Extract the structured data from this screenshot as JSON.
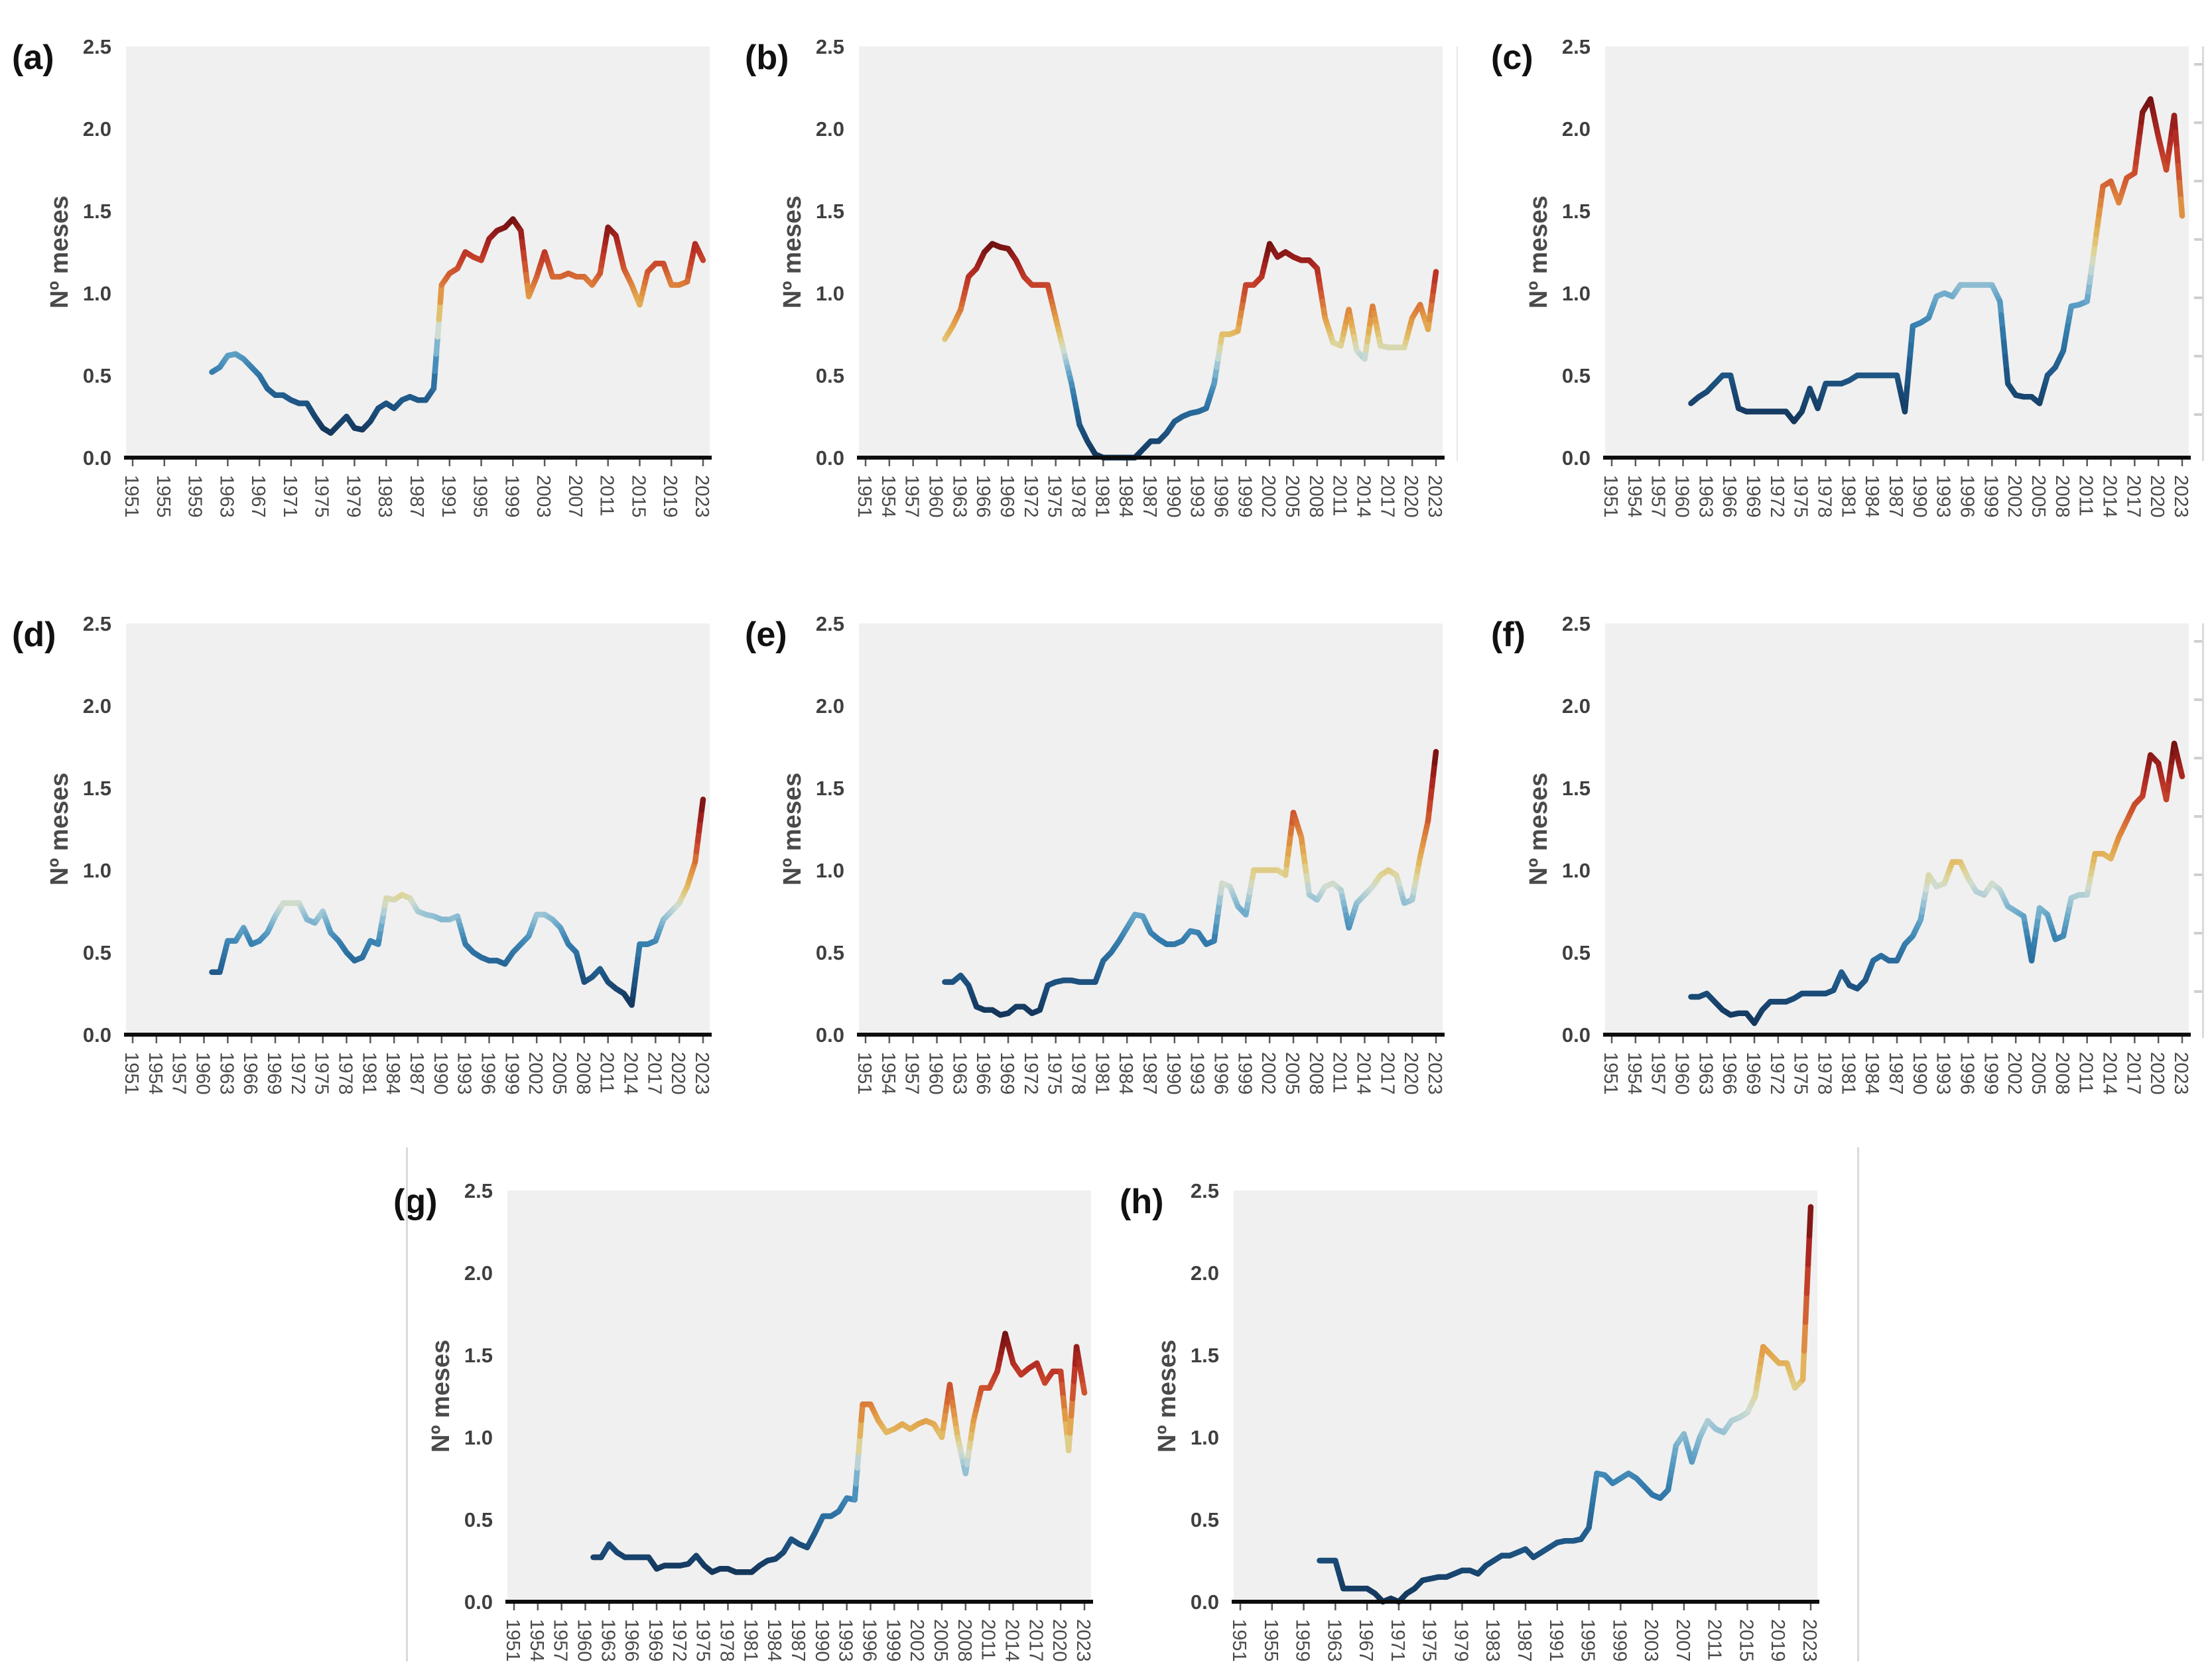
{
  "figure": {
    "ylabel": "Nº meses",
    "ylim": [
      0,
      2.5
    ],
    "y_ticks": [
      "0.0",
      "0.5",
      "1.0",
      "1.5",
      "2.0",
      "2.5"
    ],
    "x_range": [
      1951,
      2023
    ],
    "x_ticks_step3": [
      "1951",
      "1954",
      "1957",
      "1960",
      "1963",
      "1966",
      "1969",
      "1972",
      "1975",
      "1978",
      "1981",
      "1984",
      "1987",
      "1990",
      "1993",
      "1996",
      "1999",
      "2002",
      "2005",
      "2008",
      "2011",
      "2014",
      "2017",
      "2020",
      "2023"
    ],
    "x_ticks_step4": [
      "1951",
      "1955",
      "1959",
      "1963",
      "1967",
      "1971",
      "1975",
      "1979",
      "1983",
      "1987",
      "1991",
      "1995",
      "1999",
      "2003",
      "2007",
      "2011",
      "2015",
      "2019",
      "2023"
    ]
  },
  "colors": {
    "plot_bg": "#f0f0f0",
    "grid": "#ffffff",
    "axis": "#0d0d0d",
    "tick_mark": "#5a5a5a",
    "separator": "#dadada",
    "colormap": [
      [
        0.0,
        "#14365a"
      ],
      [
        0.1,
        "#1a4b77"
      ],
      [
        0.2,
        "#256495"
      ],
      [
        0.3,
        "#3780b0"
      ],
      [
        0.38,
        "#64a5c8"
      ],
      [
        0.44,
        "#9cc5d5"
      ],
      [
        0.49,
        "#cfdcd3"
      ],
      [
        0.53,
        "#ddd69c"
      ],
      [
        0.58,
        "#e2bc66"
      ],
      [
        0.64,
        "#e29e47"
      ],
      [
        0.7,
        "#db7d3b"
      ],
      [
        0.76,
        "#cf5730"
      ],
      [
        0.83,
        "#c13a28"
      ],
      [
        0.9,
        "#a82420"
      ],
      [
        1.0,
        "#6f1110"
      ]
    ],
    "color_encoding": "line color maps the y-value normalized within each panel: low = dark blue, middle = pale yellow, high = dark red"
  },
  "chart_data": [
    {
      "id": "a",
      "label": "(a)",
      "type": "line",
      "ylabel": "Nº meses",
      "ylim": [
        0,
        2.5
      ],
      "start_year": 1961,
      "x_tick_step": 4,
      "values": [
        0.52,
        0.55,
        0.62,
        0.63,
        0.6,
        0.55,
        0.5,
        0.42,
        0.38,
        0.38,
        0.35,
        0.33,
        0.33,
        0.25,
        0.18,
        0.15,
        0.2,
        0.25,
        0.18,
        0.17,
        0.22,
        0.3,
        0.33,
        0.3,
        0.35,
        0.37,
        0.35,
        0.35,
        0.42,
        1.05,
        1.12,
        1.15,
        1.25,
        1.22,
        1.2,
        1.33,
        1.38,
        1.4,
        1.45,
        1.38,
        0.98,
        1.1,
        1.25,
        1.1,
        1.1,
        1.12,
        1.1,
        1.1,
        1.05,
        1.12,
        1.4,
        1.35,
        1.15,
        1.05,
        0.93,
        1.13,
        1.18,
        1.18,
        1.05,
        1.05,
        1.07,
        1.3,
        1.2
      ]
    },
    {
      "id": "b",
      "label": "(b)",
      "type": "line",
      "ylabel": "Nº meses",
      "ylim": [
        0,
        2.5
      ],
      "start_year": 1961,
      "x_tick_step": 3,
      "values": [
        0.72,
        0.8,
        0.9,
        1.1,
        1.15,
        1.25,
        1.3,
        1.28,
        1.27,
        1.2,
        1.1,
        1.05,
        1.05,
        1.05,
        0.85,
        0.65,
        0.45,
        0.2,
        0.1,
        0.02,
        0.0,
        0.0,
        0.0,
        0.0,
        0.0,
        0.05,
        0.1,
        0.1,
        0.15,
        0.22,
        0.25,
        0.27,
        0.28,
        0.3,
        0.45,
        0.75,
        0.75,
        0.77,
        1.05,
        1.05,
        1.1,
        1.3,
        1.22,
        1.25,
        1.22,
        1.2,
        1.2,
        1.15,
        0.85,
        0.7,
        0.68,
        0.9,
        0.65,
        0.6,
        0.92,
        0.68,
        0.67,
        0.67,
        0.67,
        0.85,
        0.93,
        0.78,
        1.13
      ]
    },
    {
      "id": "c",
      "label": "(c)",
      "type": "line",
      "ylabel": "Nº meses",
      "ylim": [
        0,
        2.5
      ],
      "start_year": 1961,
      "x_tick_step": 3,
      "values": [
        0.33,
        0.37,
        0.4,
        0.45,
        0.5,
        0.5,
        0.3,
        0.28,
        0.28,
        0.28,
        0.28,
        0.28,
        0.28,
        0.22,
        0.28,
        0.42,
        0.3,
        0.45,
        0.45,
        0.45,
        0.47,
        0.5,
        0.5,
        0.5,
        0.5,
        0.5,
        0.5,
        0.28,
        0.8,
        0.82,
        0.85,
        0.98,
        1.0,
        0.98,
        1.05,
        1.05,
        1.05,
        1.05,
        1.05,
        0.95,
        0.45,
        0.38,
        0.37,
        0.37,
        0.33,
        0.5,
        0.55,
        0.65,
        0.92,
        0.93,
        0.95,
        1.3,
        1.65,
        1.68,
        1.55,
        1.7,
        1.73,
        2.1,
        2.18,
        1.95,
        1.75,
        2.08,
        1.47
      ]
    },
    {
      "id": "d",
      "label": "(d)",
      "type": "line",
      "ylabel": "Nº meses",
      "ylim": [
        0,
        2.5
      ],
      "start_year": 1961,
      "x_tick_step": 3,
      "values": [
        0.38,
        0.38,
        0.57,
        0.57,
        0.65,
        0.55,
        0.57,
        0.62,
        0.72,
        0.8,
        0.8,
        0.8,
        0.7,
        0.68,
        0.75,
        0.62,
        0.57,
        0.5,
        0.45,
        0.47,
        0.57,
        0.55,
        0.83,
        0.82,
        0.85,
        0.83,
        0.75,
        0.73,
        0.72,
        0.7,
        0.7,
        0.72,
        0.55,
        0.5,
        0.47,
        0.45,
        0.45,
        0.43,
        0.5,
        0.55,
        0.6,
        0.73,
        0.73,
        0.7,
        0.65,
        0.55,
        0.5,
        0.32,
        0.35,
        0.4,
        0.32,
        0.28,
        0.25,
        0.18,
        0.55,
        0.55,
        0.57,
        0.7,
        0.75,
        0.8,
        0.9,
        1.05,
        1.43
      ]
    },
    {
      "id": "e",
      "label": "(e)",
      "type": "line",
      "ylabel": "Nº meses",
      "ylim": [
        0,
        2.5
      ],
      "start_year": 1961,
      "x_tick_step": 3,
      "values": [
        0.32,
        0.32,
        0.36,
        0.3,
        0.17,
        0.15,
        0.15,
        0.12,
        0.13,
        0.17,
        0.17,
        0.13,
        0.15,
        0.3,
        0.32,
        0.33,
        0.33,
        0.32,
        0.32,
        0.32,
        0.45,
        0.5,
        0.57,
        0.65,
        0.73,
        0.72,
        0.62,
        0.58,
        0.55,
        0.55,
        0.57,
        0.63,
        0.62,
        0.55,
        0.57,
        0.92,
        0.9,
        0.78,
        0.73,
        1.0,
        1.0,
        1.0,
        1.0,
        0.97,
        1.35,
        1.2,
        0.85,
        0.82,
        0.9,
        0.92,
        0.88,
        0.65,
        0.8,
        0.85,
        0.9,
        0.97,
        1.0,
        0.97,
        0.8,
        0.82,
        1.08,
        1.3,
        1.72
      ]
    },
    {
      "id": "f",
      "label": "(f)",
      "type": "line",
      "ylabel": "Nº meses",
      "ylim": [
        0,
        2.5
      ],
      "start_year": 1961,
      "x_tick_step": 3,
      "values": [
        0.23,
        0.23,
        0.25,
        0.2,
        0.15,
        0.12,
        0.13,
        0.13,
        0.07,
        0.15,
        0.2,
        0.2,
        0.2,
        0.22,
        0.25,
        0.25,
        0.25,
        0.25,
        0.27,
        0.38,
        0.3,
        0.28,
        0.33,
        0.45,
        0.48,
        0.45,
        0.45,
        0.55,
        0.6,
        0.7,
        0.97,
        0.9,
        0.92,
        1.05,
        1.05,
        0.95,
        0.87,
        0.85,
        0.92,
        0.88,
        0.78,
        0.75,
        0.72,
        0.45,
        0.77,
        0.73,
        0.58,
        0.6,
        0.83,
        0.85,
        0.85,
        1.1,
        1.1,
        1.07,
        1.2,
        1.3,
        1.4,
        1.45,
        1.7,
        1.65,
        1.43,
        1.77,
        1.57
      ]
    },
    {
      "id": "g",
      "label": "(g)",
      "type": "line",
      "ylabel": "Nº meses",
      "ylim": [
        0,
        2.5
      ],
      "start_year": 1961,
      "x_tick_step": 3,
      "values": [
        0.27,
        0.27,
        0.35,
        0.3,
        0.27,
        0.27,
        0.27,
        0.27,
        0.2,
        0.22,
        0.22,
        0.22,
        0.23,
        0.28,
        0.22,
        0.18,
        0.2,
        0.2,
        0.18,
        0.18,
        0.18,
        0.22,
        0.25,
        0.26,
        0.3,
        0.38,
        0.35,
        0.33,
        0.42,
        0.52,
        0.52,
        0.55,
        0.63,
        0.62,
        1.2,
        1.2,
        1.1,
        1.03,
        1.05,
        1.08,
        1.05,
        1.08,
        1.1,
        1.08,
        1.0,
        1.32,
        1.0,
        0.78,
        1.1,
        1.3,
        1.3,
        1.4,
        1.63,
        1.45,
        1.38,
        1.42,
        1.45,
        1.33,
        1.4,
        1.4,
        0.92,
        1.55,
        1.27
      ]
    },
    {
      "id": "h",
      "label": "(h)",
      "type": "line",
      "ylabel": "Nº meses",
      "ylim": [
        0,
        2.5
      ],
      "start_year": 1961,
      "x_tick_step": 4,
      "values": [
        0.25,
        0.25,
        0.25,
        0.08,
        0.08,
        0.08,
        0.08,
        0.05,
        0.0,
        0.02,
        0.0,
        0.05,
        0.08,
        0.13,
        0.14,
        0.15,
        0.15,
        0.17,
        0.19,
        0.19,
        0.17,
        0.22,
        0.25,
        0.28,
        0.28,
        0.3,
        0.32,
        0.27,
        0.3,
        0.33,
        0.36,
        0.37,
        0.37,
        0.38,
        0.45,
        0.78,
        0.77,
        0.72,
        0.75,
        0.78,
        0.75,
        0.7,
        0.65,
        0.63,
        0.68,
        0.95,
        1.02,
        0.85,
        1.0,
        1.1,
        1.05,
        1.03,
        1.1,
        1.12,
        1.15,
        1.25,
        1.55,
        1.5,
        1.45,
        1.45,
        1.3,
        1.35,
        2.4
      ]
    }
  ]
}
